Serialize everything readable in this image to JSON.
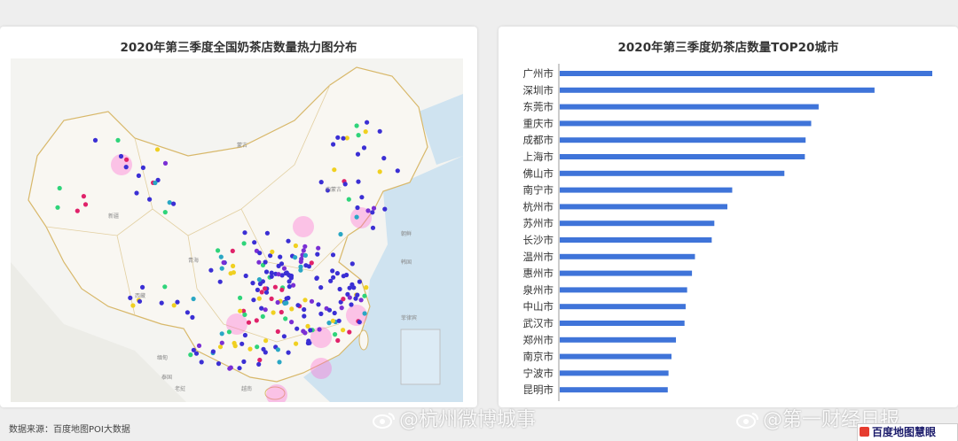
{
  "chart_data": [
    {
      "type": "heatmap",
      "title": "2020年第三季度全国奶茶店数量热力图分布",
      "map_labels": [
        "蒙古",
        "内蒙古",
        "新疆",
        "西藏",
        "青海",
        "朝鲜",
        "韩国",
        "缅甸",
        "老挝",
        "泰国",
        "越南",
        "菲律宾"
      ]
    },
    {
      "type": "bar",
      "title": "2020年第三季度奶茶店数量TOP20城市",
      "categories": [
        "广州市",
        "深圳市",
        "东莞市",
        "重庆市",
        "成都市",
        "上海市",
        "佛山市",
        "南宁市",
        "杭州市",
        "苏州市",
        "长沙市",
        "温州市",
        "惠州市",
        "泉州市",
        "中山市",
        "武汉市",
        "郑州市",
        "南京市",
        "宁波市",
        "昆明市"
      ],
      "values": [
        100,
        84.5,
        69.5,
        67.5,
        66,
        65.8,
        60.3,
        46.3,
        45,
        41.5,
        40.8,
        36.3,
        35.5,
        34.2,
        33.8,
        33.5,
        31.2,
        30,
        29.2,
        29
      ],
      "xlim": [
        0,
        100
      ],
      "color": "#3f74d9"
    }
  ],
  "source": "数据来源：百度地图POI大数据",
  "watermarks": [
    "@杭州微博城事",
    "@第一财经日报"
  ],
  "corner_logo_text": "百度地图慧眼"
}
